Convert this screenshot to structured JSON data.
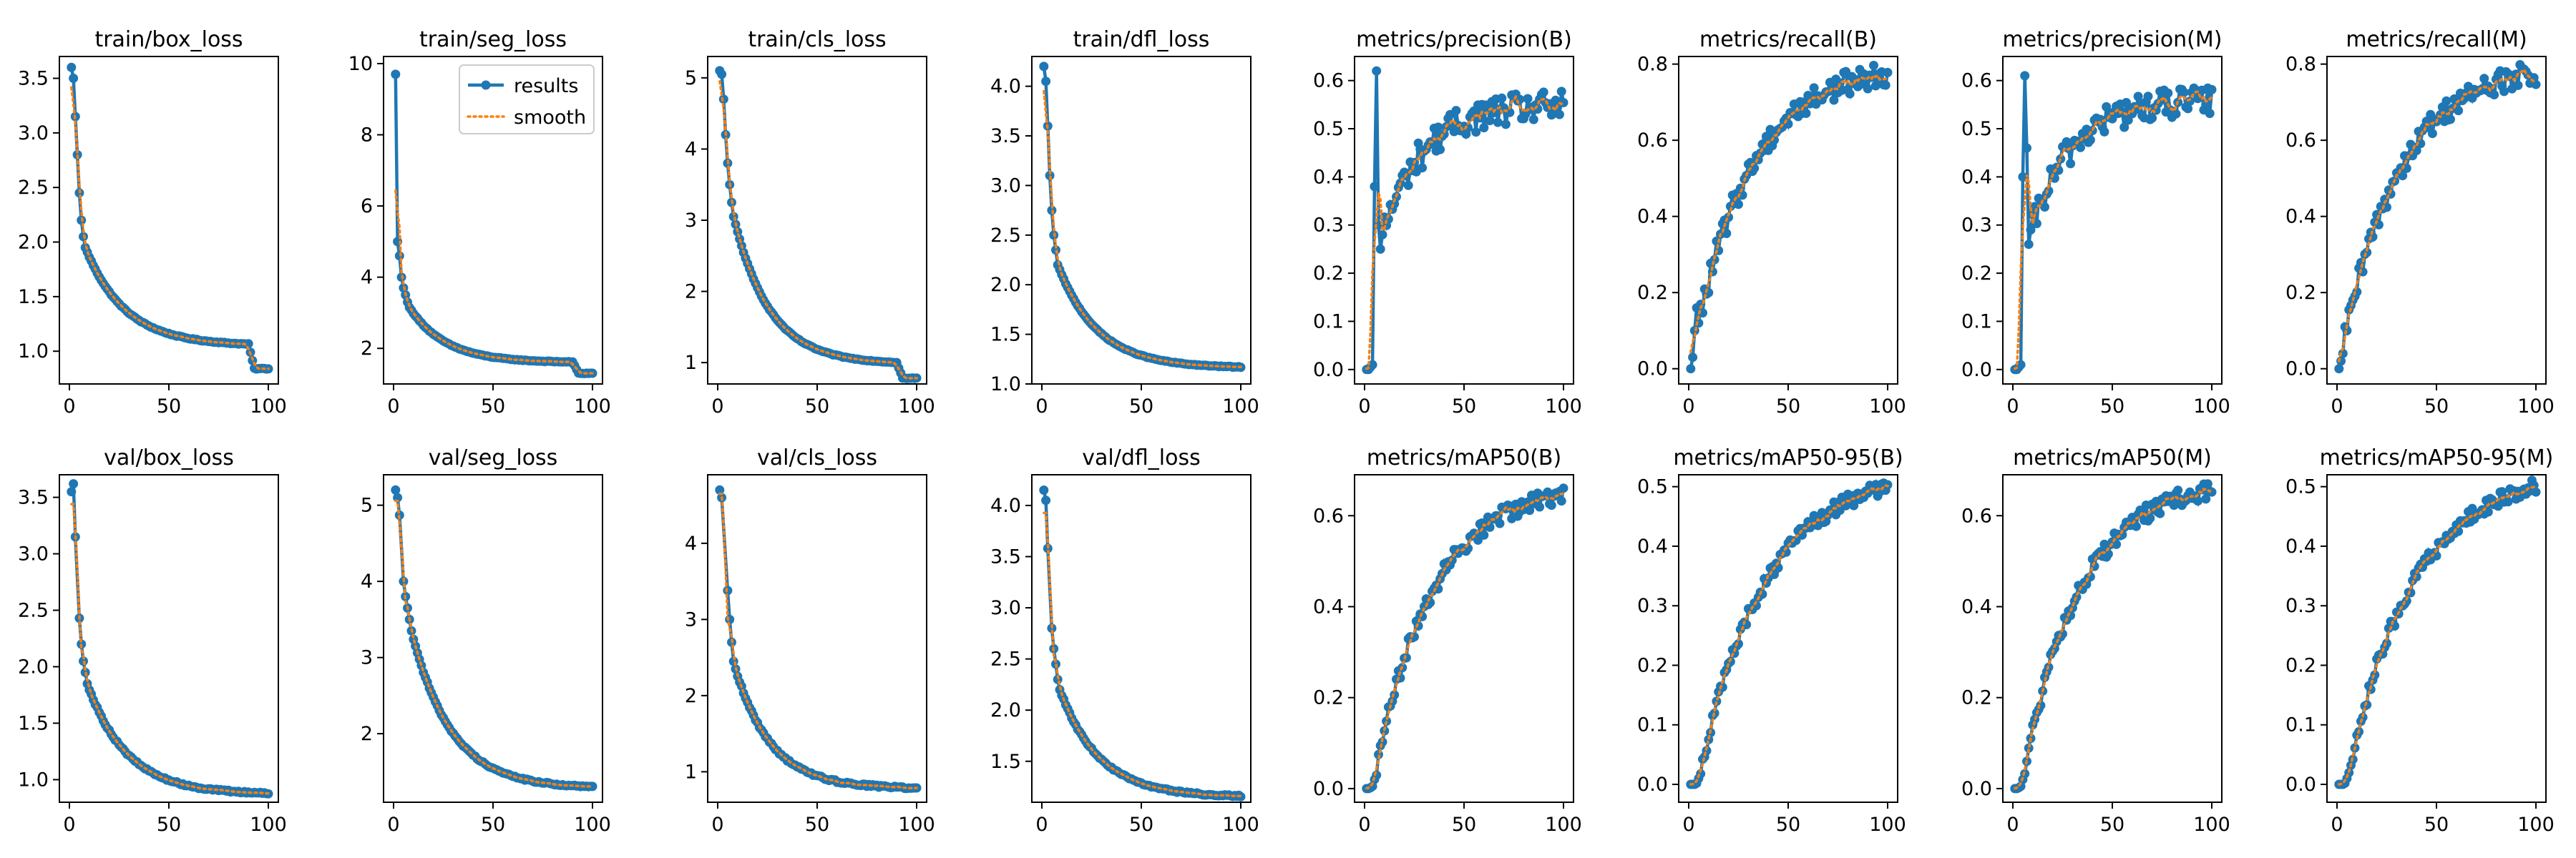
{
  "colors": {
    "results": "#1f77b4",
    "smooth": "#ff7f0e",
    "axes": "#000000",
    "background": "#ffffff"
  },
  "legend": {
    "results_label": "results",
    "smooth_label": "smooth",
    "placement": "top-right",
    "panel": "train/seg_loss"
  },
  "chart_data": [
    {
      "type": "line",
      "title": "train/box_loss",
      "xlim": [
        0,
        100
      ],
      "ylim": [
        0.7,
        3.7
      ],
      "xticks": [
        0,
        50,
        100
      ],
      "yticks": [
        1.0,
        1.5,
        2.0,
        2.5,
        3.0,
        3.5
      ],
      "x_range": [
        1,
        100
      ],
      "series": [],
      "curve": {
        "kind": "decay",
        "start": [
          3.6,
          3.5,
          3.15,
          2.8,
          2.45,
          2.2,
          2.05,
          1.95
        ],
        "end_value": 1.05,
        "k": 0.05,
        "drop_at": 90,
        "drop_value": 0.84,
        "noise": 0.004
      }
    },
    {
      "type": "line",
      "title": "train/seg_loss",
      "xlim": [
        0,
        100
      ],
      "ylim": [
        1.0,
        10.2
      ],
      "xticks": [
        0,
        50,
        100
      ],
      "yticks": [
        2,
        4,
        6,
        8,
        10
      ],
      "x_range": [
        1,
        100
      ],
      "curve": {
        "kind": "decay",
        "start": [
          9.7,
          5.0,
          4.6,
          4.0,
          3.7,
          3.5,
          3.3,
          3.15
        ],
        "end_value": 1.6,
        "k": 0.055,
        "drop_at": 90,
        "drop_value": 1.3,
        "noise": 0.01
      }
    },
    {
      "type": "line",
      "title": "train/cls_loss",
      "xlim": [
        0,
        100
      ],
      "ylim": [
        0.7,
        5.3
      ],
      "xticks": [
        0,
        50,
        100
      ],
      "yticks": [
        1,
        2,
        3,
        4,
        5
      ],
      "x_range": [
        1,
        100
      ],
      "curve": {
        "kind": "decay",
        "start": [
          5.1,
          5.05,
          4.7,
          4.2,
          3.8,
          3.5,
          3.25,
          3.05
        ],
        "end_value": 0.98,
        "k": 0.055,
        "drop_at": 90,
        "drop_value": 0.78,
        "noise": 0.006
      }
    },
    {
      "type": "line",
      "title": "train/dfl_loss",
      "xlim": [
        0,
        100
      ],
      "ylim": [
        1.0,
        4.3
      ],
      "xticks": [
        0,
        50,
        100
      ],
      "yticks": [
        1.0,
        1.5,
        2.0,
        2.5,
        3.0,
        3.5,
        4.0
      ],
      "x_range": [
        1,
        100
      ],
      "curve": {
        "kind": "decay",
        "start": [
          4.2,
          4.05,
          3.6,
          3.1,
          2.75,
          2.5,
          2.35,
          2.2
        ],
        "end_value": 1.16,
        "k": 0.05,
        "noise": 0.004
      }
    },
    {
      "type": "line",
      "title": "metrics/precision(B)",
      "xlim": [
        0,
        100
      ],
      "ylim": [
        -0.03,
        0.65
      ],
      "xticks": [
        0,
        50,
        100
      ],
      "yticks": [
        0.0,
        0.1,
        0.2,
        0.3,
        0.4,
        0.5,
        0.6
      ],
      "x_range": [
        1,
        100
      ],
      "curve": {
        "kind": "rise",
        "start": [
          0.0,
          0.0,
          0.005,
          0.01,
          0.38,
          0.62,
          0.3,
          0.25,
          0.28
        ],
        "end_value": 0.55,
        "k": 0.05,
        "noise": 0.02
      }
    },
    {
      "type": "line",
      "title": "metrics/recall(B)",
      "xlim": [
        0,
        100
      ],
      "ylim": [
        -0.04,
        0.82
      ],
      "xticks": [
        0,
        50,
        100
      ],
      "yticks": [
        0.0,
        0.2,
        0.4,
        0.6,
        0.8
      ],
      "x_range": [
        1,
        100
      ],
      "curve": {
        "kind": "rise",
        "start": [
          0.0,
          0.03,
          0.1,
          0.16,
          0.12
        ],
        "end_value": 0.8,
        "k": 0.035,
        "noise": 0.02
      }
    },
    {
      "type": "line",
      "title": "metrics/precision(M)",
      "xlim": [
        0,
        100
      ],
      "ylim": [
        -0.03,
        0.65
      ],
      "xticks": [
        0,
        50,
        100
      ],
      "yticks": [
        0.0,
        0.1,
        0.2,
        0.3,
        0.4,
        0.5,
        0.6
      ],
      "x_range": [
        1,
        100
      ],
      "curve": {
        "kind": "rise",
        "start": [
          0.0,
          0.0,
          0.005,
          0.01,
          0.4,
          0.61,
          0.46,
          0.26,
          0.29
        ],
        "end_value": 0.56,
        "k": 0.05,
        "noise": 0.02
      }
    },
    {
      "type": "line",
      "title": "metrics/recall(M)",
      "xlim": [
        0,
        100
      ],
      "ylim": [
        -0.04,
        0.82
      ],
      "xticks": [
        0,
        50,
        100
      ],
      "yticks": [
        0.0,
        0.2,
        0.4,
        0.6,
        0.8
      ],
      "x_range": [
        1,
        100
      ],
      "curve": {
        "kind": "rise",
        "start": [
          0.0,
          0.02,
          0.04,
          0.11,
          0.1
        ],
        "end_value": 0.8,
        "k": 0.035,
        "noise": 0.02
      }
    },
    {
      "type": "line",
      "title": "val/box_loss",
      "xlim": [
        0,
        100
      ],
      "ylim": [
        0.8,
        3.7
      ],
      "xticks": [
        0,
        50,
        100
      ],
      "yticks": [
        1.0,
        1.5,
        2.0,
        2.5,
        3.0,
        3.5
      ],
      "x_range": [
        1,
        100
      ],
      "curve": {
        "kind": "decay",
        "start": [
          3.55,
          3.62,
          3.15,
          null,
          2.43,
          2.2,
          2.05,
          1.95,
          1.85
        ],
        "end_value": 0.87,
        "k": 0.05,
        "noise": 0.008
      }
    },
    {
      "type": "line",
      "title": "val/seg_loss",
      "xlim": [
        0,
        100
      ],
      "ylim": [
        1.1,
        5.4
      ],
      "xticks": [
        0,
        50,
        100
      ],
      "yticks": [
        2,
        3,
        4,
        5
      ],
      "x_range": [
        1,
        100
      ],
      "curve": {
        "kind": "decay",
        "start": [
          5.2,
          5.1,
          4.87,
          null,
          4.0,
          3.8,
          3.65,
          3.5,
          3.35
        ],
        "end_value": 1.28,
        "k": 0.05,
        "noise": 0.01
      }
    },
    {
      "type": "line",
      "title": "val/cls_loss",
      "xlim": [
        0,
        100
      ],
      "ylim": [
        0.6,
        4.9
      ],
      "xticks": [
        0,
        50,
        100
      ],
      "yticks": [
        1,
        2,
        3,
        4
      ],
      "x_range": [
        1,
        100
      ],
      "curve": {
        "kind": "decay",
        "start": [
          4.7,
          4.6,
          null,
          null,
          3.38,
          3.0,
          2.7,
          2.45,
          2.35
        ],
        "end_value": 0.78,
        "k": 0.055,
        "noise": 0.015
      }
    },
    {
      "type": "line",
      "title": "val/dfl_loss",
      "xlim": [
        0,
        100
      ],
      "ylim": [
        1.1,
        4.3
      ],
      "xticks": [
        0,
        50,
        100
      ],
      "yticks": [
        1.5,
        2.0,
        2.5,
        3.0,
        3.5,
        4.0
      ],
      "x_range": [
        1,
        100
      ],
      "curve": {
        "kind": "decay",
        "start": [
          4.15,
          4.05,
          3.58,
          null,
          2.8,
          2.6,
          2.45,
          2.3,
          2.2
        ],
        "end_value": 1.15,
        "k": 0.05,
        "noise": 0.008
      }
    },
    {
      "type": "line",
      "title": "metrics/mAP50(B)",
      "xlim": [
        0,
        100
      ],
      "ylim": [
        -0.03,
        0.69
      ],
      "xticks": [
        0,
        50,
        100
      ],
      "yticks": [
        0.0,
        0.2,
        0.4,
        0.6
      ],
      "x_range": [
        1,
        100
      ],
      "curve": {
        "kind": "rise",
        "start": [
          0.0,
          0.0,
          0.002,
          0.005,
          0.02
        ],
        "end_value": 0.67,
        "k": 0.035,
        "noise": 0.012
      }
    },
    {
      "type": "line",
      "title": "metrics/mAP50-95(B)",
      "xlim": [
        0,
        100
      ],
      "ylim": [
        -0.03,
        0.52
      ],
      "xticks": [
        0,
        50,
        100
      ],
      "yticks": [
        0.0,
        0.1,
        0.2,
        0.3,
        0.4,
        0.5
      ],
      "x_range": [
        1,
        100
      ],
      "curve": {
        "kind": "rise",
        "start": [
          0.0,
          0.0,
          0.0,
          0.002,
          0.01
        ],
        "end_value": 0.53,
        "k": 0.03,
        "noise": 0.008
      }
    },
    {
      "type": "line",
      "title": "metrics/mAP50(M)",
      "xlim": [
        0,
        100
      ],
      "ylim": [
        -0.03,
        0.69
      ],
      "xticks": [
        0,
        50,
        100
      ],
      "yticks": [
        0.0,
        0.2,
        0.4,
        0.6
      ],
      "x_range": [
        1,
        100
      ],
      "curve": {
        "kind": "rise",
        "start": [
          0.0,
          0.0,
          0.002,
          0.005,
          0.02
        ],
        "end_value": 0.68,
        "k": 0.035,
        "noise": 0.012
      }
    },
    {
      "type": "line",
      "title": "metrics/mAP50-95(M)",
      "xlim": [
        0,
        100
      ],
      "ylim": [
        -0.03,
        0.52
      ],
      "xticks": [
        0,
        50,
        100
      ],
      "yticks": [
        0.0,
        0.1,
        0.2,
        0.3,
        0.4,
        0.5
      ],
      "x_range": [
        1,
        100
      ],
      "curve": {
        "kind": "rise",
        "start": [
          0.0,
          0.0,
          0.0,
          0.002,
          0.01
        ],
        "end_value": 0.53,
        "k": 0.03,
        "noise": 0.008
      }
    }
  ]
}
